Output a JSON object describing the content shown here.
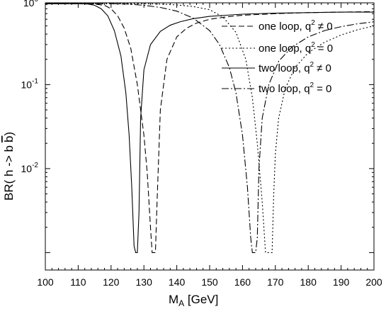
{
  "chart_data": {
    "type": "line",
    "xlabel": "M_A [GeV]",
    "xlabel_main": "M",
    "xlabel_sub": "A",
    "xlabel_rest": " [GeV]",
    "ylabel": "BR( h -> b b )",
    "ylabel_text": "BR( h -> b",
    "ylabel_bbar": "b",
    "ylabel_close": ")",
    "xlim": [
      100,
      200
    ],
    "ylim": [
      0.001,
      1.3
    ],
    "yscale": "log",
    "grid": false,
    "legend_position": "top-right",
    "x_ticks": [
      "100",
      "110",
      "120",
      "130",
      "140",
      "150",
      "160",
      "170",
      "180",
      "190",
      "200"
    ],
    "y_ticks": [
      {
        "base": "10",
        "exp": "0",
        "value": 1
      },
      {
        "base": "10",
        "exp": "-1",
        "value": 0.1
      },
      {
        "base": "10",
        "exp": "-2",
        "value": 0.01
      }
    ],
    "series": [
      {
        "name": "one loop, q² ≠ 0",
        "legend_main": "one loop, q",
        "legend_exp": "2",
        "legend_tail": "≠ 0",
        "dash": "8,4",
        "color": "#000000",
        "x": [
          100,
          110,
          115,
          118,
          120,
          122,
          124,
          126,
          128,
          130,
          131,
          132,
          132.5,
          133,
          133.5,
          134,
          135,
          137,
          140,
          143,
          146,
          150,
          155,
          160,
          170,
          180,
          190,
          200
        ],
        "y": [
          0.92,
          0.92,
          0.91,
          0.88,
          0.8,
          0.66,
          0.47,
          0.27,
          0.1,
          0.025,
          0.009,
          0.002,
          0.001,
          0.001,
          0.001,
          0.004,
          0.05,
          0.2,
          0.37,
          0.47,
          0.54,
          0.6,
          0.64,
          0.67,
          0.7,
          0.72,
          0.73,
          0.74
        ]
      },
      {
        "name": "one loop, q² = 0",
        "legend_main": "one loop, q",
        "legend_exp": "2",
        "legend_tail": "= 0",
        "dash": "2,3",
        "color": "#000000",
        "x": [
          100,
          120,
          130,
          135,
          140,
          145,
          150,
          154,
          158,
          161,
          163,
          164.5,
          166,
          167,
          167.5,
          168,
          168.5,
          169,
          169.5,
          170,
          171,
          173,
          176,
          180,
          185,
          190,
          195,
          200
        ],
        "y": [
          0.92,
          0.92,
          0.92,
          0.91,
          0.89,
          0.85,
          0.78,
          0.64,
          0.42,
          0.2,
          0.07,
          0.02,
          0.004,
          0.001,
          0.001,
          0.001,
          0.001,
          0.001,
          0.005,
          0.015,
          0.04,
          0.09,
          0.16,
          0.24,
          0.32,
          0.39,
          0.45,
          0.5
        ]
      },
      {
        "name": "two loop, q² ≠ 0",
        "legend_main": "two loop, q",
        "legend_exp": "2",
        "legend_tail": "≠ 0",
        "dash": "",
        "color": "#000000",
        "x": [
          100,
          110,
          113,
          115,
          117,
          119,
          121,
          123,
          124.5,
          125.5,
          126.3,
          127,
          127.5,
          128,
          128.5,
          129,
          130,
          132,
          135,
          138,
          141,
          145,
          150,
          155,
          160,
          170,
          180,
          190,
          200
        ],
        "y": [
          0.92,
          0.92,
          0.91,
          0.88,
          0.8,
          0.66,
          0.44,
          0.22,
          0.08,
          0.025,
          0.006,
          0.0012,
          0.001,
          0.001,
          0.003,
          0.04,
          0.15,
          0.3,
          0.43,
          0.51,
          0.56,
          0.61,
          0.65,
          0.67,
          0.69,
          0.71,
          0.72,
          0.73,
          0.73
        ]
      },
      {
        "name": "two loop, q² = 0",
        "legend_main": "two loop, q",
        "legend_exp": "2",
        "legend_tail": "= 0",
        "dash": "10,3,2,3",
        "color": "#000000",
        "x": [
          100,
          120,
          125,
          130,
          135,
          140,
          145,
          150,
          153,
          156,
          158,
          160,
          161.5,
          162.5,
          163,
          163.5,
          164,
          164.5,
          165,
          166,
          168,
          171,
          175,
          180,
          185,
          190,
          195,
          200
        ],
        "y": [
          0.92,
          0.92,
          0.91,
          0.88,
          0.83,
          0.75,
          0.62,
          0.44,
          0.3,
          0.16,
          0.08,
          0.025,
          0.006,
          0.0015,
          0.001,
          0.001,
          0.001,
          0.0015,
          0.01,
          0.04,
          0.1,
          0.19,
          0.28,
          0.37,
          0.44,
          0.49,
          0.53,
          0.56
        ]
      }
    ]
  }
}
